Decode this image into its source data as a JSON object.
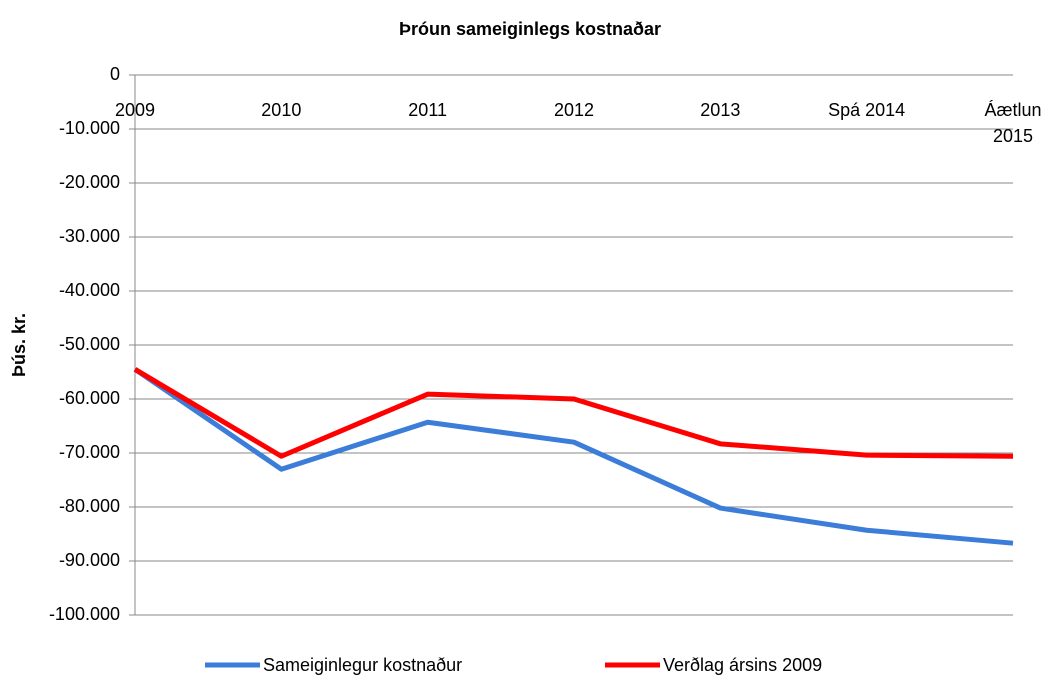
{
  "chart_data": {
    "type": "line",
    "title": "Þróun sameiginlegs kostnaðar",
    "y_label": "Þús. kr.",
    "categories": [
      "2009",
      "2010",
      "2011",
      "2012",
      "2013",
      "Spá 2014",
      "Áætlun 2015"
    ],
    "series": [
      {
        "name": "Sameiginlegur kostnaður",
        "color": "#3b7dd8",
        "values": [
          -54500,
          -73000,
          -64300,
          -68000,
          -80200,
          -84300,
          -86700
        ]
      },
      {
        "name": "Verðlag ársins 2009",
        "color": "#ff0000",
        "values": [
          -54500,
          -70600,
          -59100,
          -60000,
          -68300,
          -70400,
          -70600
        ]
      }
    ],
    "ylim": [
      -100000,
      0
    ],
    "yticks": [
      0,
      {
        "value": -10000,
        "label": "-10.000"
      },
      {
        "value": -20000,
        "label": "-20.000"
      },
      {
        "value": -30000,
        "label": "-30.000"
      },
      {
        "value": -40000,
        "label": "-40.000"
      },
      {
        "value": -50000,
        "label": "-50.000"
      },
      {
        "value": -60000,
        "label": "-60.000"
      },
      {
        "value": -70000,
        "label": "-70.000"
      },
      {
        "value": -80000,
        "label": "-80.000"
      },
      {
        "value": -90000,
        "label": "-90.000"
      },
      {
        "value": -100000,
        "label": "-100.000"
      }
    ],
    "grid": true,
    "legend": "bottom"
  }
}
